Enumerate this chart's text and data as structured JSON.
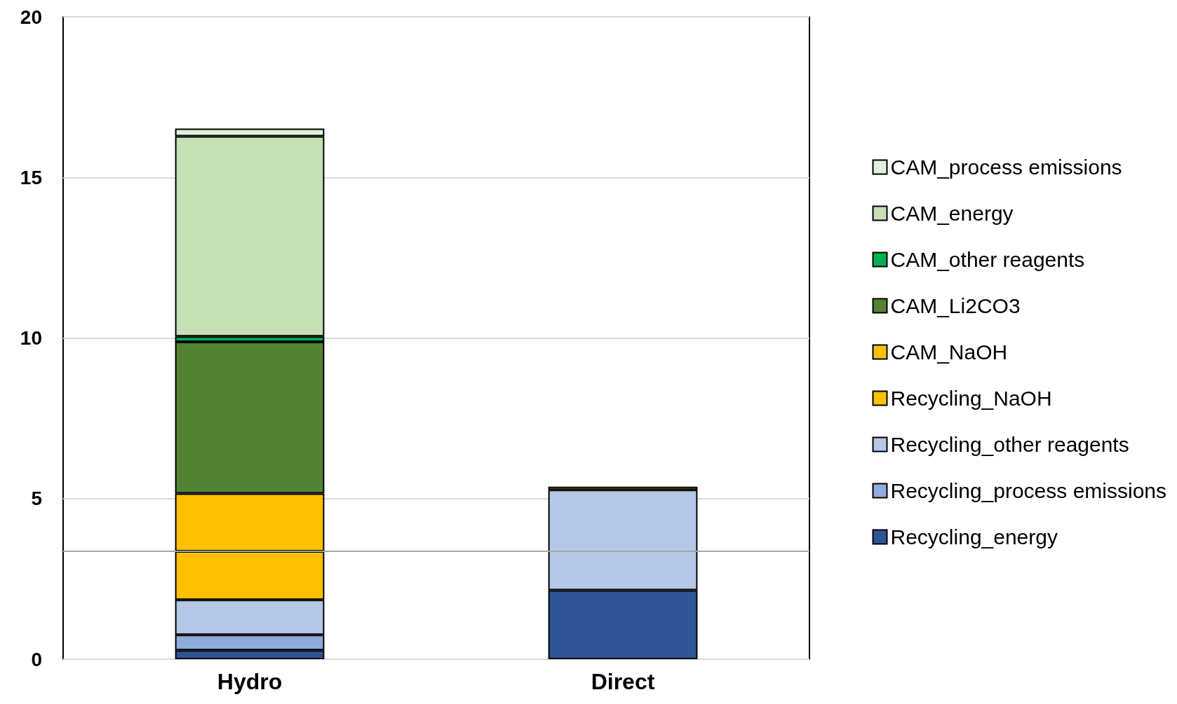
{
  "chart_data": {
    "type": "bar",
    "stacked": true,
    "categories": [
      "Hydro",
      "Direct"
    ],
    "series": [
      {
        "name": "Recycling_energy",
        "color": "#2f5597",
        "values": [
          0.28,
          2.15
        ]
      },
      {
        "name": "Recycling_process emissions",
        "color": "#8faadc",
        "values": [
          0.48,
          null
        ]
      },
      {
        "name": "Recycling_other reagents",
        "color": "#b4c7e7",
        "values": [
          1.09,
          3.12
        ]
      },
      {
        "name": "Recycling_NaOH",
        "color": "#ffc000",
        "values": [
          1.51,
          0.1
        ]
      },
      {
        "name": "CAM_NaOH",
        "color": "#ffc000",
        "values": [
          1.8,
          null
        ]
      },
      {
        "name": "CAM_Li2CO3",
        "color": "#548235",
        "values": [
          4.72,
          null
        ]
      },
      {
        "name": "CAM_other reagents",
        "color": "#00b050",
        "values": [
          0.17,
          null
        ]
      },
      {
        "name": "CAM_energy",
        "color": "#c5e0b4",
        "values": [
          6.23,
          null
        ]
      },
      {
        "name": "CAM_process emissions",
        "color": "#e2f0d9",
        "values": [
          0.24,
          null
        ]
      }
    ],
    "ylim": [
      0,
      20
    ],
    "yticks": [
      0,
      5,
      10,
      15,
      20
    ],
    "grid": "y",
    "legend": "right",
    "ref_lines": [
      {
        "axis": "y",
        "value": 3.36,
        "color": "#a6a6a6"
      }
    ]
  }
}
